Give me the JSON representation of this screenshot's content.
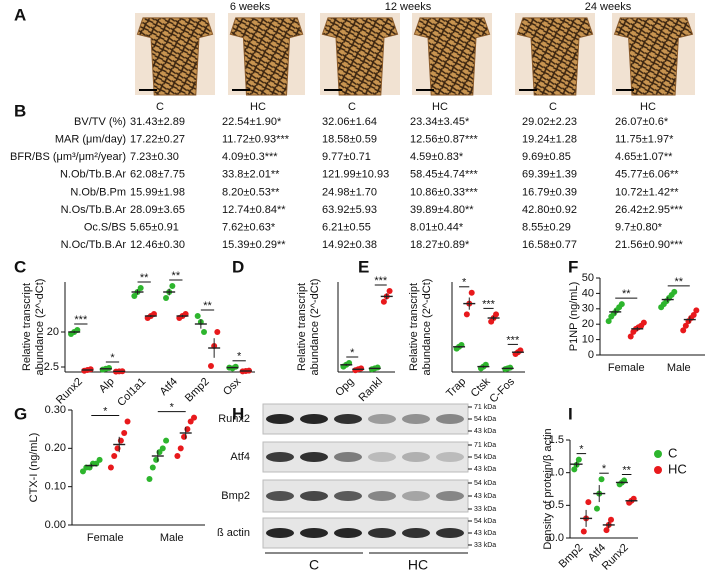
{
  "panels": [
    "A",
    "B",
    "C",
    "D",
    "E",
    "F",
    "G",
    "H",
    "I"
  ],
  "histology": {
    "timepoints": [
      "6 weeks",
      "12 weeks",
      "24 weeks"
    ]
  },
  "table": {
    "header": [
      "C",
      "HC",
      "C",
      "HC",
      "C",
      "HC"
    ],
    "rows": [
      [
        "BV/TV (%)",
        "31.43±2.89",
        "22.54±1.90*",
        "32.06±1.64",
        "23.34±3.45*",
        "29.02±2.23",
        "26.07±0.6*"
      ],
      [
        "MAR (μm/day)",
        "17.22±0.27",
        "11.72±0.93***",
        "18.58±0.59",
        "12.56±0.87***",
        "19.24±1.28",
        "11.75±1.97*"
      ],
      [
        "BFR/BS (μm³/μm²/year)",
        "7.23±0.30",
        "4.09±0.3***",
        "9.77±0.71",
        "4.59±0.83*",
        "9.69±0.85",
        "4.65±1.07**"
      ],
      [
        "N.Ob/Tb.B.Ar",
        "62.08±7.75",
        "33.8±2.01**",
        "121.99±10.93",
        "58.45±4.74***",
        "69.39±1.39",
        "45.77±6.06**"
      ],
      [
        "N.Ob/B.Pm",
        "15.99±1.98",
        "8.20±0.53**",
        "24.98±1.70",
        "10.86±0.33***",
        "16.79±0.39",
        "10.72±1.42**"
      ],
      [
        "N.Os/Tb.B.Ar",
        "28.09±3.65",
        "12.74±0.84**",
        "63.92±5.93",
        "39.89±4.80**",
        "42.80±0.92",
        "26.42±2.95***"
      ],
      [
        "Oc.S/BS",
        "5.65±0.91",
        "7.62±0.63*",
        "6.21±0.55",
        "8.01±0.44*",
        "8.55±0.29",
        "9.7±0.80*"
      ],
      [
        "N.Oc/Tb.B.Ar",
        "12.46±0.30",
        "15.39±0.29**",
        "14.92±0.38",
        "18.27±0.89*",
        "16.58±0.77",
        "21.56±0.90***"
      ]
    ]
  },
  "chart_data": [
    {
      "type": "dot",
      "ylabel": [
        "Relative transcript",
        "abundance (2^-dCt)"
      ],
      "categories": [
        "Runx2",
        "Alp",
        "Col1a1",
        "Atf4",
        "Bmp2",
        "Osx"
      ],
      "ylim": [
        0,
        45
      ],
      "yticks": [
        2.5,
        20
      ],
      "series": [
        {
          "color": "#2db52d",
          "values": [
            [
              19,
              20,
              21
            ],
            [
              1.2,
              1.6,
              2.0
            ],
            [
              38,
              40,
              42
            ],
            [
              37,
              40,
              43
            ],
            [
              28,
              25,
              20
            ],
            [
              2.2,
              1.8,
              2.6
            ]
          ],
          "means": [
            20,
            1.6,
            40,
            40,
            24,
            2.2
          ],
          "errors": [
            0.6,
            0.2,
            1.2,
            1.7,
            2.3,
            0.2
          ]
        },
        {
          "color": "#e8191c",
          "values": [
            [
              0.6,
              1.0,
              1.4
            ],
            [
              0.2,
              0.3,
              0.4
            ],
            [
              27,
              28,
              29
            ],
            [
              27,
              28,
              29
            ],
            [
              3,
              13,
              20
            ],
            [
              0.3,
              0.5,
              0.7
            ]
          ],
          "means": [
            1,
            0.3,
            28,
            28,
            12,
            0.5
          ],
          "errors": [
            0.2,
            0.06,
            0.6,
            0.6,
            4.9,
            0.1
          ]
        }
      ],
      "significance": [
        {
          "category": "Runx2",
          "label": "***"
        },
        {
          "category": "Alp",
          "label": "*"
        },
        {
          "category": "Col1a1",
          "label": "**"
        },
        {
          "category": "Atf4",
          "label": "**"
        },
        {
          "category": "Bmp2",
          "label": "**"
        },
        {
          "category": "Osx",
          "label": "*"
        }
      ]
    },
    {
      "type": "dot",
      "ylabel": [
        "Relative transcript",
        "abundance (2^-dCt)"
      ],
      "categories": [
        "Opg",
        "Rankl"
      ],
      "ylim": [
        0,
        50
      ],
      "series": [
        {
          "color": "#2db52d",
          "values": [
            [
              3,
              4,
              5
            ],
            [
              1.5,
              2,
              2.5
            ]
          ],
          "means": [
            4,
            2
          ],
          "errors": [
            0.6,
            0.3
          ]
        },
        {
          "color": "#e8191c",
          "values": [
            [
              1,
              1.5,
              2
            ],
            [
              39,
              42,
              45
            ]
          ],
          "means": [
            1.5,
            42
          ],
          "errors": [
            0.3,
            1.7
          ]
        }
      ],
      "significance": [
        {
          "category": "Opg",
          "label": "*"
        },
        {
          "category": "Rankl",
          "label": "***"
        }
      ]
    },
    {
      "type": "dot",
      "ylabel": [
        "Relative transcript",
        "abundance (2^-dCt)"
      ],
      "categories": [
        "Trap",
        "Ctsk",
        "C-Fos"
      ],
      "ylim": [
        0,
        25
      ],
      "series": [
        {
          "color": "#2db52d",
          "values": [
            [
              6.5,
              7,
              7.5
            ],
            [
              1,
              1.5,
              2
            ],
            [
              0.8,
              1,
              1.2
            ]
          ],
          "means": [
            7,
            1.5,
            1
          ],
          "errors": [
            0.3,
            0.3,
            0.1
          ]
        },
        {
          "color": "#e8191c",
          "values": [
            [
              16,
              19,
              22
            ],
            [
              14,
              15,
              16
            ],
            [
              5,
              5.5,
              6
            ]
          ],
          "means": [
            19,
            15,
            5.5
          ],
          "errors": [
            1.7,
            0.6,
            0.3
          ]
        }
      ],
      "significance": [
        {
          "category": "Trap",
          "label": "*"
        },
        {
          "category": "Ctsk",
          "label": "***"
        },
        {
          "category": "C-Fos",
          "label": "***"
        }
      ]
    },
    {
      "type": "dot",
      "ylabel": "P1NP (ng/mL)",
      "categories": [
        "Female",
        "Male"
      ],
      "ylim": [
        0,
        50
      ],
      "yticks": [
        0,
        10,
        20,
        30,
        40,
        50
      ],
      "series": [
        {
          "color": "#2db52d",
          "values": [
            [
              22,
              25,
              27,
              29,
              31,
              33
            ],
            [
              31,
              33,
              35,
              37,
              39,
              41
            ]
          ],
          "means": [
            28,
            36
          ],
          "errors": [
            1.7,
            1.7
          ]
        },
        {
          "color": "#e8191c",
          "values": [
            [
              12,
              15,
              17,
              18,
              19,
              21
            ],
            [
              16,
              19,
              22,
              24,
              26,
              29
            ]
          ],
          "means": [
            17,
            23
          ],
          "errors": [
            1.3,
            2
          ]
        }
      ],
      "significance": [
        {
          "category": "Female",
          "label": "**"
        },
        {
          "category": "Male",
          "label": "**"
        }
      ]
    },
    {
      "type": "dot",
      "ylabel": "CTX-I (ng/mL)",
      "categories": [
        "Female",
        "Male"
      ],
      "ylim": [
        0,
        0.3
      ],
      "yticks": [
        {
          "value": 0,
          "label": "0.00"
        },
        {
          "value": 0.1,
          "label": "0.10"
        },
        {
          "value": 0.2,
          "label": "0.20"
        },
        {
          "value": 0.3,
          "label": "0.30"
        }
      ],
      "series": [
        {
          "color": "#2db52d",
          "values": [
            [
              0.14,
              0.15,
              0.15,
              0.16,
              0.16,
              0.17
            ],
            [
              0.12,
              0.15,
              0.17,
              0.19,
              0.2,
              0.22
            ]
          ],
          "means": [
            0.155,
            0.18
          ],
          "errors": [
            0.005,
            0.015
          ]
        },
        {
          "color": "#e8191c",
          "values": [
            [
              0.15,
              0.18,
              0.2,
              0.22,
              0.24,
              0.27
            ],
            [
              0.18,
              0.2,
              0.23,
              0.25,
              0.27,
              0.28
            ]
          ],
          "means": [
            0.21,
            0.24
          ],
          "errors": [
            0.02,
            0.016
          ]
        }
      ],
      "significance": [
        {
          "category": "Female",
          "label": "*"
        },
        {
          "category": "Male",
          "label": "*"
        }
      ]
    },
    {
      "type": "dot",
      "ylabel": "Density of protein/β actin",
      "categories": [
        "Bmp2",
        "Atf4",
        "Runx2"
      ],
      "ylim": [
        0,
        1.5
      ],
      "yticks": [
        {
          "value": 0,
          "label": "0.0"
        },
        0.5,
        {
          "value": 1,
          "label": "1.0"
        },
        1.5
      ],
      "legend": "right",
      "series": [
        {
          "name": "C",
          "color": "#2db52d",
          "values": [
            [
              1.05,
              1.12,
              1.2
            ],
            [
              0.45,
              0.68,
              0.9
            ],
            [
              0.82,
              0.85,
              0.88
            ]
          ],
          "means": [
            1.13,
            0.68,
            0.85
          ],
          "errors": [
            0.04,
            0.13,
            0.02
          ]
        },
        {
          "name": "HC",
          "color": "#e8191c",
          "values": [
            [
              0.1,
              0.3,
              0.55
            ],
            [
              0.12,
              0.2,
              0.28
            ],
            [
              0.54,
              0.57,
              0.6
            ]
          ],
          "means": [
            0.3,
            0.2,
            0.57
          ],
          "errors": [
            0.13,
            0.05,
            0.02
          ]
        }
      ],
      "significance": [
        {
          "category": "Bmp2",
          "label": "*"
        },
        {
          "category": "Atf4",
          "label": "*"
        },
        {
          "category": "Runx2",
          "label": "**"
        }
      ]
    }
  ],
  "blot": {
    "proteins": [
      "Runx2",
      "Atf4",
      "Bmp2",
      "ß actin"
    ],
    "markers": [
      [
        "71 kDa",
        "54 kDa",
        "43 kDa"
      ],
      [
        "71 kDa",
        "54 kDa",
        "43 kDa"
      ],
      [
        "54 kDa",
        "43 kDa",
        "33 kDa"
      ],
      [
        "54 kDa",
        "43 kDa",
        "33 kDa"
      ]
    ],
    "groups": [
      "C",
      "HC"
    ]
  }
}
